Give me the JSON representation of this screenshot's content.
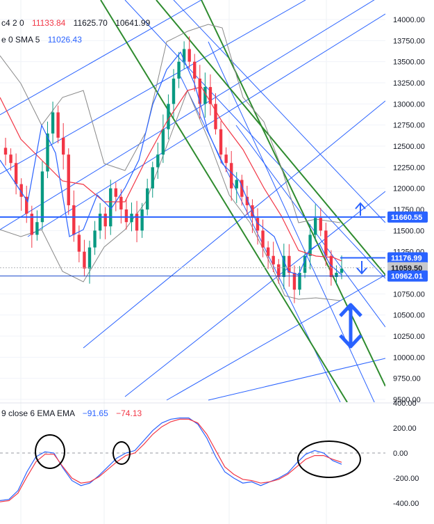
{
  "price_overlay": {
    "bb_prefix": "c4 2 0",
    "bb_values": [
      "11133.84",
      "11625.70",
      "10641.99"
    ],
    "bb_colors": [
      "#f23645",
      "#131722",
      "#131722"
    ],
    "sma_prefix": "e 0 SMA 5",
    "sma_value": "11026.43",
    "sma_color": "#2962ff"
  },
  "macd_overlay": {
    "prefix": "9 close 6 EMA EMA",
    "values": [
      "−91.65",
      "−74.13"
    ],
    "colors": [
      "#2962ff",
      "#f23645"
    ]
  },
  "price_axis": {
    "ticks": [
      "14000.00",
      "13750.00",
      "13500.00",
      "13250.00",
      "13000.00",
      "12750.00",
      "12500.00",
      "12250.00",
      "12000.00",
      "11750.00",
      "11500.00",
      "11250.00",
      "10750.00",
      "10500.00",
      "10250.00",
      "10000.00",
      "9750.00",
      "9500.00"
    ],
    "tick_values": [
      14000,
      13750,
      13500,
      13250,
      13000,
      12750,
      12500,
      12250,
      12000,
      11750,
      11500,
      11250,
      10750,
      10500,
      10250,
      10000,
      9750,
      9500
    ]
  },
  "price_tags": [
    {
      "label": "11660.55",
      "value": 11660.55,
      "bg": "#2962ff",
      "fg": "#ffffff"
    },
    {
      "label": "11176.99",
      "value": 11176.99,
      "bg": "#2962ff",
      "fg": "#ffffff"
    },
    {
      "label": "11059.50",
      "value": 11059.5,
      "bg": "#c8c9cc",
      "fg": "#131722"
    },
    {
      "label": "10962.01",
      "value": 10962.01,
      "bg": "#2962ff",
      "fg": "#ffffff"
    }
  ],
  "macd_axis": {
    "ticks": [
      "400.00",
      "200.00",
      "0.00",
      "-200.00",
      "-400.00"
    ],
    "tick_values": [
      400,
      200,
      0,
      -200,
      -400
    ]
  },
  "colors": {
    "up": "#26a69a",
    "down": "#ef5350",
    "upcandle": "#089981",
    "downcandle": "#f23645",
    "blue": "#2962ff",
    "green": "#2e8b2e",
    "red": "#f23645",
    "gray": "#888888"
  },
  "chart_data": [
    {
      "type": "candlestick",
      "ylim": [
        9500,
        14050
      ],
      "horizontal_lines": [
        11660.55,
        10962.01
      ],
      "candles": [],
      "annotations": [
        "up-arrow",
        "down-arrow",
        "double-arrow"
      ]
    },
    {
      "type": "line",
      "ylim": [
        -450,
        420
      ],
      "series": [
        {
          "values": [
            -380,
            -370,
            -300,
            -150,
            -30,
            10,
            0,
            -120,
            -220,
            -260,
            -240,
            -180,
            -110,
            -40,
            0,
            20,
            100,
            180,
            240,
            270,
            280,
            280,
            230,
            120,
            -30,
            -150,
            -200,
            -240,
            -230,
            -260,
            -230,
            -200,
            -160,
            -80,
            -10,
            20,
            0,
            -60,
            -90
          ]
        },
        {
          "values": [
            -390,
            -380,
            -320,
            -190,
            -70,
            -10,
            -10,
            -110,
            -200,
            -240,
            -230,
            -190,
            -130,
            -70,
            -20,
            0,
            70,
            150,
            210,
            250,
            270,
            270,
            240,
            150,
            20,
            -110,
            -170,
            -210,
            -220,
            -240,
            -230,
            -210,
            -170,
            -110,
            -50,
            -20,
            -20,
            -50,
            -74
          ]
        }
      ]
    }
  ]
}
